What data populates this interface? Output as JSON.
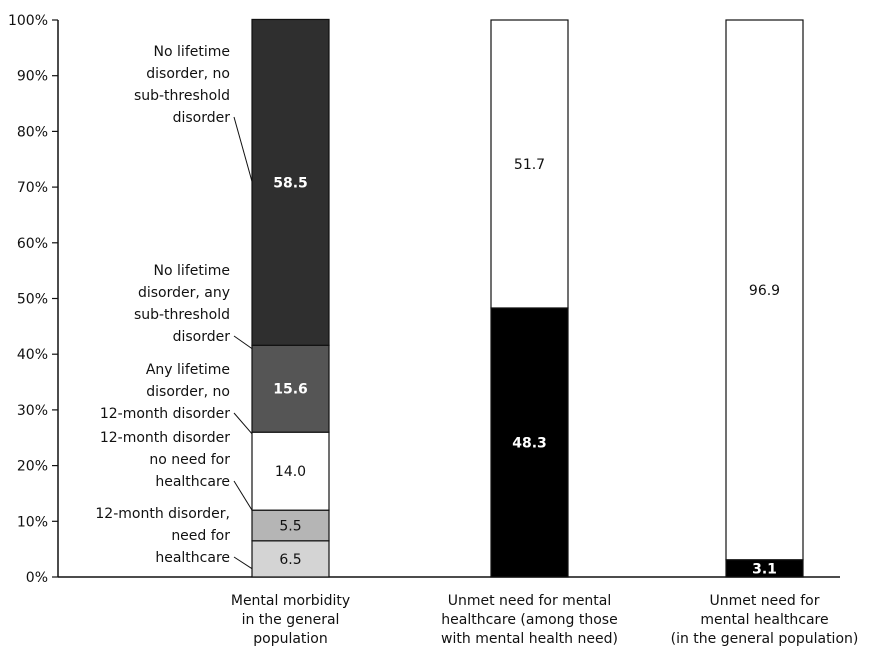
{
  "chart_data": {
    "type": "bar",
    "stacked": true,
    "ylim": [
      0,
      100
    ],
    "yticks": [
      "0%",
      "10%",
      "20%",
      "30%",
      "40%",
      "50%",
      "60%",
      "70%",
      "80%",
      "90%",
      "100%"
    ],
    "bars": [
      {
        "category": [
          "Mental morbidity",
          "in the general",
          "population"
        ],
        "segments": [
          {
            "value": 6.5,
            "label": "6.5",
            "color": "#d4d4d4",
            "text_color": "#111111"
          },
          {
            "value": 5.5,
            "label": "5.5",
            "color": "#b5b5b5",
            "text_color": "#111111"
          },
          {
            "value": 14.0,
            "label": "14.0",
            "color": "#ffffff",
            "text_color": "#111111"
          },
          {
            "value": 15.6,
            "label": "15.6",
            "color": "#555555",
            "text_color": "#ffffff"
          },
          {
            "value": 58.5,
            "label": "58.5",
            "color": "#2f2f2f",
            "text_color": "#ffffff"
          }
        ]
      },
      {
        "category": [
          "Unmet need for mental",
          "healthcare (among those",
          "with mental health need)"
        ],
        "segments": [
          {
            "value": 48.3,
            "label": "48.3",
            "color": "#000000",
            "text_color": "#ffffff"
          },
          {
            "value": 51.7,
            "label": "51.7",
            "color": "#ffffff",
            "text_color": "#111111"
          }
        ]
      },
      {
        "category": [
          "Unmet need for",
          "mental healthcare",
          "(in the general population)"
        ],
        "segments": [
          {
            "value": 3.1,
            "label": "3.1",
            "color": "#000000",
            "text_color": "#ffffff"
          },
          {
            "value": 96.9,
            "label": "96.9",
            "color": "#ffffff",
            "text_color": "#111111"
          }
        ]
      }
    ],
    "annotations": [
      {
        "lines": [
          "No lifetime",
          "disorder, no",
          "sub-threshold",
          "disorder"
        ],
        "points_to": 71
      },
      {
        "lines": [
          "No lifetime",
          "disorder, any",
          "sub-threshold",
          "disorder"
        ],
        "points_to": 41
      },
      {
        "lines": [
          "Any lifetime",
          "disorder, no",
          "12-month disorder"
        ],
        "points_to": 25.7
      },
      {
        "lines": [
          "12-month disorder",
          "no need for",
          "healthcare"
        ],
        "points_to": 12
      },
      {
        "lines": [
          "12-month disorder,",
          "need for",
          "healthcare"
        ],
        "points_to": 1.5
      }
    ]
  }
}
